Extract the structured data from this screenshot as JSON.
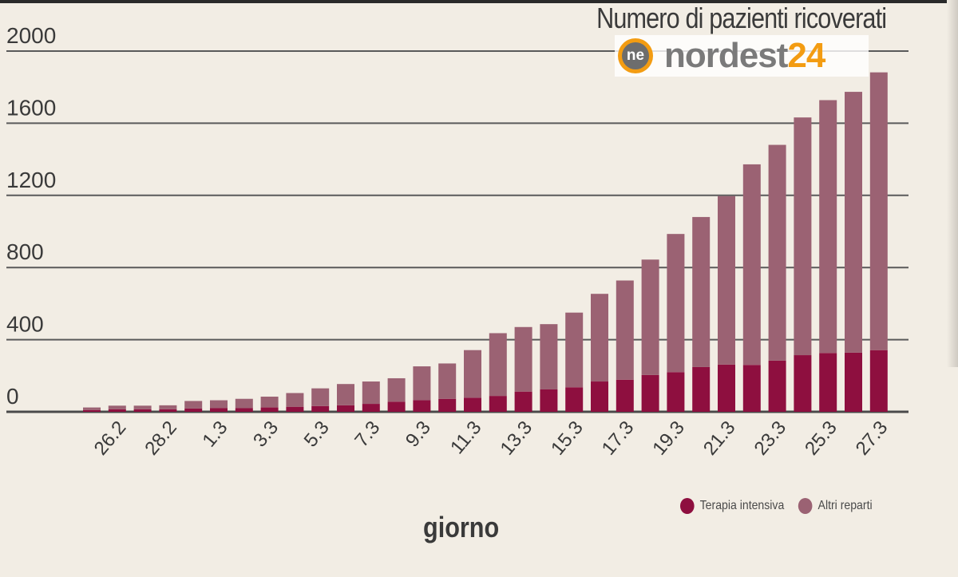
{
  "chart_data": {
    "type": "bar",
    "stacked": true,
    "title": "Numero di pazienti ricoverati",
    "xlabel": "giorno",
    "ylabel": "",
    "ylim": [
      0,
      2000
    ],
    "yticks": [
      0,
      400,
      800,
      1200,
      1600,
      2000
    ],
    "grid": true,
    "legend_position": "bottom-right",
    "x_tick_labels": [
      "26.2",
      "28.2",
      "1.3",
      "3.3",
      "5.3",
      "7.3",
      "9.3",
      "11.3",
      "13.3",
      "15.3",
      "17.3",
      "19.3",
      "21.3",
      "23.3",
      "25.3",
      "27.3"
    ],
    "categories": [
      "25.2",
      "26.2",
      "27.2",
      "28.2",
      "29.2",
      "1.3",
      "2.3",
      "3.3",
      "4.3",
      "5.3",
      "6.3",
      "7.3",
      "8.3",
      "9.3",
      "10.3",
      "11.3",
      "12.3",
      "13.3",
      "14.3",
      "15.3",
      "16.3",
      "17.3",
      "18.3",
      "19.3",
      "20.3",
      "21.3",
      "22.3",
      "23.3",
      "24.3",
      "25.3",
      "26.3",
      "27.3"
    ],
    "series": [
      {
        "name": "Terapia intensiva",
        "color": "#8e0f3f",
        "values": [
          10,
          14,
          14,
          14,
          18,
          20,
          20,
          24,
          28,
          32,
          36,
          44,
          56,
          64,
          72,
          78,
          88,
          112,
          124,
          136,
          168,
          178,
          204,
          220,
          248,
          262,
          260,
          284,
          314,
          326,
          328,
          342
        ]
      },
      {
        "name": "Altri reparti",
        "color": "#9b6273",
        "values": [
          14,
          20,
          20,
          22,
          42,
          44,
          52,
          60,
          76,
          98,
          118,
          124,
          130,
          188,
          196,
          264,
          348,
          358,
          362,
          414,
          486,
          550,
          640,
          766,
          832,
          934,
          1112,
          1196,
          1318,
          1402,
          1446,
          1540
        ]
      }
    ]
  },
  "logo": {
    "badge": "ne",
    "text_main": "nordest",
    "text_accent": "24"
  }
}
